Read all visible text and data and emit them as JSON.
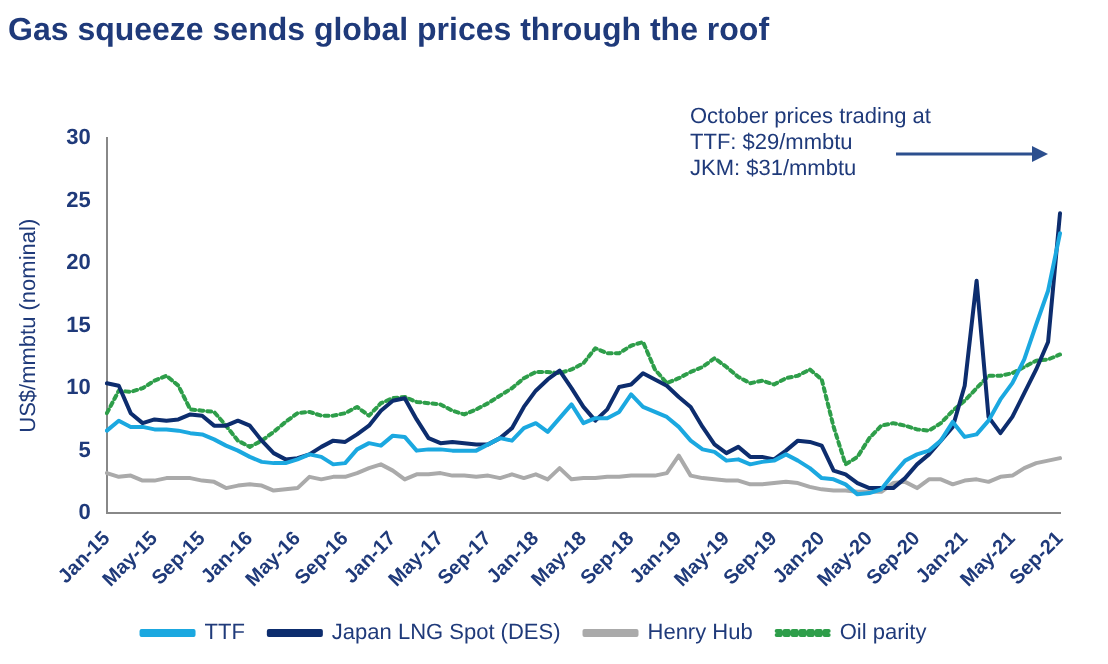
{
  "chart_data": {
    "type": "line",
    "title": "Gas squeeze sends global prices through the roof",
    "ylabel": "US$/mmbtu (nominal)",
    "categories": [
      "Jan-15",
      null,
      null,
      null,
      "May-15",
      null,
      null,
      null,
      "Sep-15",
      null,
      null,
      null,
      "Jan-16",
      null,
      null,
      null,
      "May-16",
      null,
      null,
      null,
      "Sep-16",
      null,
      null,
      null,
      "Jan-17",
      null,
      null,
      null,
      "May-17",
      null,
      null,
      null,
      "Sep-17",
      null,
      null,
      null,
      "Jan-18",
      null,
      null,
      null,
      "May-18",
      null,
      null,
      null,
      "Sep-18",
      null,
      null,
      null,
      "Jan-19",
      null,
      null,
      null,
      "May-19",
      null,
      null,
      null,
      "Sep-19",
      null,
      null,
      null,
      "Jan-20",
      null,
      null,
      null,
      "May-20",
      null,
      null,
      null,
      "Sep-20",
      null,
      null,
      null,
      "Jan-21",
      null,
      null,
      null,
      "May-21",
      null,
      null,
      null,
      "Sep-21"
    ],
    "series": [
      {
        "name": "TTF",
        "color": "#1ba8e0",
        "values": [
          6.6,
          7.4,
          6.9,
          6.9,
          6.7,
          6.7,
          6.6,
          6.4,
          6.3,
          5.9,
          5.4,
          5.0,
          4.5,
          4.1,
          4.0,
          4.0,
          4.3,
          4.7,
          4.5,
          3.9,
          4.0,
          5.1,
          5.6,
          5.4,
          6.2,
          6.1,
          5.0,
          5.1,
          5.1,
          5.0,
          5.0,
          5.0,
          5.5,
          6.0,
          5.8,
          6.8,
          7.2,
          6.5,
          7.6,
          8.7,
          7.2,
          7.6,
          7.6,
          8.1,
          9.5,
          8.5,
          8.1,
          7.7,
          6.9,
          5.8,
          5.1,
          4.9,
          4.2,
          4.3,
          3.9,
          4.1,
          4.2,
          4.7,
          4.2,
          3.6,
          2.8,
          2.7,
          2.3,
          1.5,
          1.6,
          1.9,
          3.1,
          4.2,
          4.7,
          5.0,
          5.8,
          7.3,
          6.1,
          6.3,
          7.4,
          9.1,
          10.4,
          12.3,
          15.1,
          17.8,
          22.4
        ]
      },
      {
        "name": "Japan LNG Spot (DES)",
        "color": "#0d2d6e",
        "values": [
          10.4,
          10.2,
          8.0,
          7.2,
          7.5,
          7.4,
          7.5,
          7.9,
          7.8,
          7.0,
          7.0,
          7.4,
          7.0,
          5.8,
          4.8,
          4.3,
          4.4,
          4.7,
          5.3,
          5.8,
          5.7,
          6.3,
          7.0,
          8.2,
          9.0,
          9.2,
          7.5,
          6.0,
          5.6,
          5.7,
          5.6,
          5.5,
          5.5,
          6.0,
          6.8,
          8.5,
          9.8,
          10.7,
          11.4,
          10.0,
          8.5,
          7.4,
          8.3,
          10.1,
          10.3,
          11.2,
          10.7,
          10.2,
          9.3,
          8.5,
          6.9,
          5.5,
          4.8,
          5.3,
          4.5,
          4.5,
          4.3,
          5.0,
          5.8,
          5.7,
          5.4,
          3.4,
          3.1,
          2.4,
          2.0,
          2.0,
          2.0,
          2.8,
          3.9,
          4.7,
          5.8,
          6.9,
          10.2,
          18.6,
          7.7,
          6.4,
          7.7,
          9.6,
          11.5,
          13.7,
          24.0
        ]
      },
      {
        "name": "Henry Hub",
        "color": "#aaaaaa",
        "values": [
          3.2,
          2.9,
          3.0,
          2.6,
          2.6,
          2.8,
          2.8,
          2.8,
          2.6,
          2.5,
          2.0,
          2.2,
          2.3,
          2.2,
          1.8,
          1.9,
          2.0,
          2.9,
          2.7,
          2.9,
          2.9,
          3.2,
          3.6,
          3.9,
          3.4,
          2.7,
          3.1,
          3.1,
          3.2,
          3.0,
          3.0,
          2.9,
          3.0,
          2.8,
          3.1,
          2.8,
          3.1,
          2.7,
          3.6,
          2.7,
          2.8,
          2.8,
          2.9,
          2.9,
          3.0,
          3.0,
          3.0,
          3.2,
          4.6,
          3.0,
          2.8,
          2.7,
          2.6,
          2.6,
          2.3,
          2.3,
          2.4,
          2.5,
          2.4,
          2.1,
          1.9,
          1.8,
          1.8,
          1.7,
          1.7,
          1.7,
          2.4,
          2.5,
          2.0,
          2.7,
          2.7,
          2.3,
          2.6,
          2.7,
          2.5,
          2.9,
          3.0,
          3.6,
          4.0,
          4.2,
          4.4
        ]
      },
      {
        "name": "Oil parity",
        "color": "#2e9e4a",
        "line_style": "dotted",
        "values": [
          8.0,
          9.8,
          9.7,
          10.0,
          10.6,
          11.0,
          10.2,
          8.3,
          8.2,
          8.1,
          7.0,
          5.8,
          5.3,
          5.8,
          6.5,
          7.3,
          8.0,
          8.1,
          7.8,
          7.8,
          8.0,
          8.5,
          7.8,
          8.8,
          9.2,
          9.3,
          8.9,
          8.8,
          8.7,
          8.2,
          7.9,
          8.3,
          8.8,
          9.4,
          10.0,
          10.8,
          11.3,
          11.3,
          11.2,
          11.5,
          12.0,
          13.2,
          12.8,
          12.8,
          13.4,
          13.7,
          11.5,
          10.4,
          10.8,
          11.3,
          11.7,
          12.4,
          11.7,
          10.9,
          10.4,
          10.6,
          10.3,
          10.8,
          11.0,
          11.5,
          10.7,
          6.9,
          3.9,
          4.5,
          6.0,
          7.0,
          7.2,
          7.0,
          6.7,
          6.6,
          7.2,
          8.2,
          9.0,
          10.0,
          11.0,
          11.0,
          11.2,
          11.7,
          12.2,
          12.3,
          12.7
        ]
      }
    ],
    "ylim": [
      0,
      30
    ],
    "yticks": [
      0,
      5,
      10,
      15,
      20,
      25,
      30
    ],
    "grid": false,
    "legend": "bottom",
    "marker": "none",
    "line_style": "solid",
    "annotations": [
      "October prices trading at\nTTF: $29/mmbtu\nJKM: $31/mmbtu"
    ]
  }
}
